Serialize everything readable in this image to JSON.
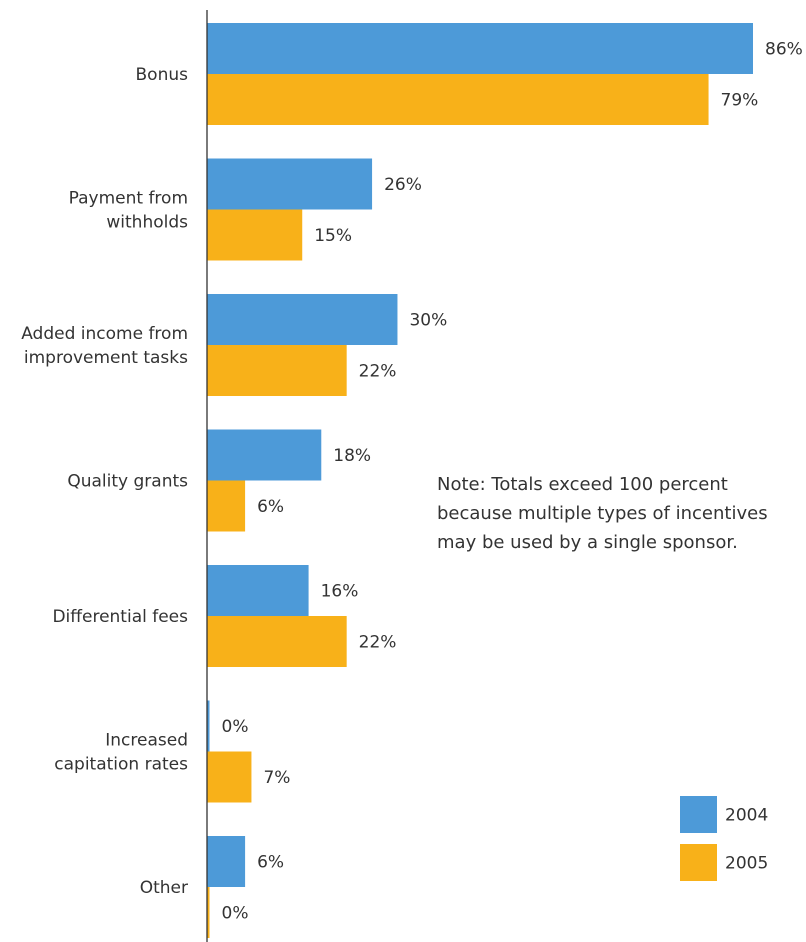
{
  "colors": {
    "series_2004": "#4d9ad8",
    "series_2005": "#f8b119",
    "axis": "#333333",
    "text": "#333333"
  },
  "note": {
    "lines": [
      "Note: Totals exceed 100 percent",
      "because multiple types of incentives",
      "may be used by a single sponsor."
    ]
  },
  "chart_data": {
    "type": "bar",
    "orientation": "horizontal",
    "categories": [
      [
        "Bonus"
      ],
      [
        "Payment from",
        "withholds"
      ],
      [
        "Added income from",
        "improvement tasks"
      ],
      [
        "Quality grants"
      ],
      [
        "Differential fees"
      ],
      [
        "Increased",
        "capitation rates"
      ],
      [
        "Other"
      ]
    ],
    "series": [
      {
        "name": "2004",
        "color": "#4d9ad8",
        "values": [
          86,
          26,
          30,
          18,
          16,
          0,
          6
        ],
        "labels": [
          "86%",
          "26%",
          "30%",
          "18%",
          "16%",
          "0%",
          "6%"
        ]
      },
      {
        "name": "2005",
        "color": "#f8b119",
        "values": [
          79,
          15,
          22,
          6,
          22,
          7,
          0
        ],
        "labels": [
          "79%",
          "15%",
          "22%",
          "6%",
          "22%",
          "7%",
          "0%"
        ]
      }
    ],
    "xlim": [
      0,
      86
    ],
    "grid": false,
    "legend_position": "bottom-right"
  }
}
